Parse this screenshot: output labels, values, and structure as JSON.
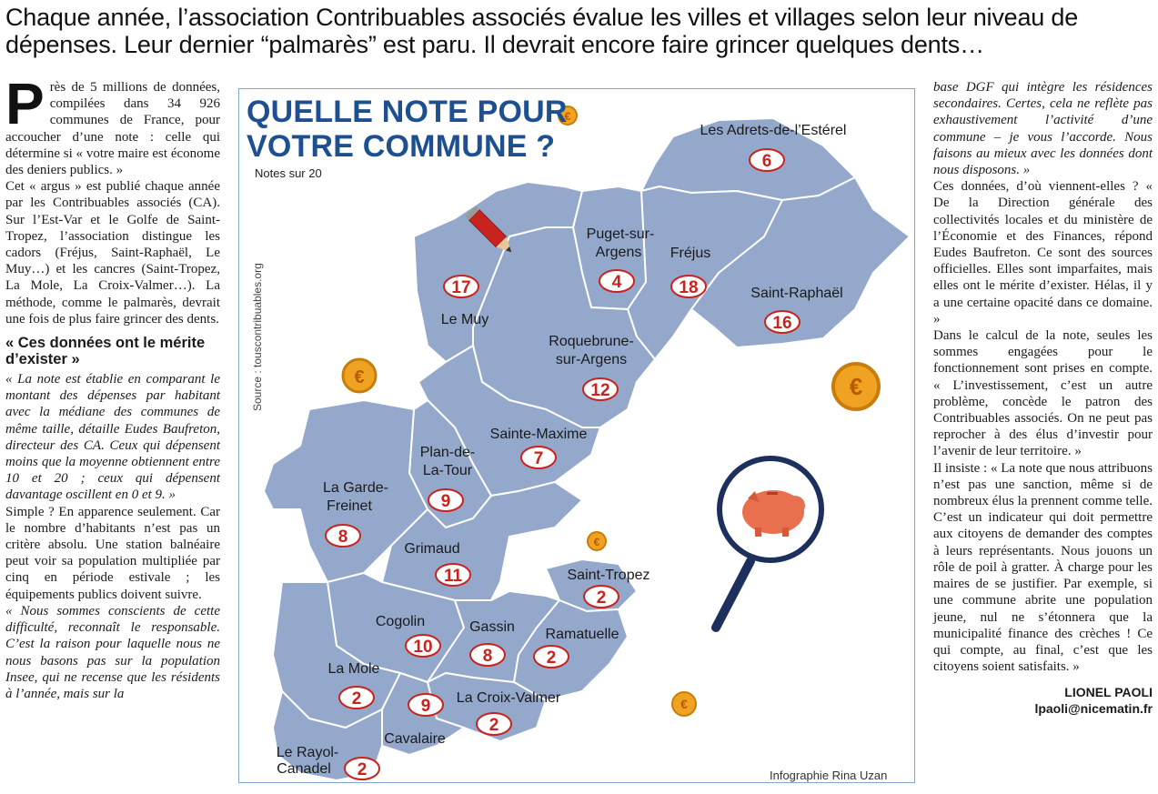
{
  "headline": "Chaque année, l’association Contribuables associés évalue les villes et villages selon leur niveau de dépenses. Leur dernier “palmarès” est paru. Il devrait encore faire grincer quelques dents…",
  "left": {
    "dropcap": "P",
    "intro": "rès de 5 millions de données, compilées dans 34 926 communes de France, pour accoucher d’une note : celle qui détermine si « votre maire est économe des deniers publics. »",
    "p1": "Cet « argus » est publié chaque année par les Contribuables associés (CA). Sur l’Est-Var et le Golfe de Saint-Tropez, l’association distingue les cadors (Fréjus, Saint-Raphaël, Le Muy…) et les cancres (Saint-Tropez, La Mole, La Croix-Valmer…). La méthode, comme le palmarès, devrait une fois de plus faire grincer des dents.",
    "subhead": "« Ces données ont le mérite d’exister »",
    "p2": "« La note est établie en comparant le montant des dépenses par habitant avec la médiane des communes de même taille, détaille Eudes Baufreton, directeur des CA. Ceux qui dépensent moins que la moyenne obtiennent entre 10 et 20 ; ceux qui dépensent davantage oscillent en 0 et 9. »",
    "p3": "Simple ? En apparence seulement. Car le nombre d’habitants n’est pas un critère absolu. Une station balnéaire peut voir sa population multipliée par cinq en période estivale ; les équipements publics doivent suivre.",
    "p4": "« Nous sommes conscients de cette difficulté, reconnaît le responsable. C’est la raison pour laquelle nous ne nous basons pas sur la population Insee, qui ne recense que les résidents à l’année, mais sur la"
  },
  "right": {
    "p1": "base DGF qui intègre les résidences secondaires. Certes, cela ne reflète pas exhaustivement l’activité d’une commune – je vous l’accorde. Nous faisons au mieux avec les données dont nous disposons. »",
    "p2": "Ces données, d’où viennent-elles ? « De la Direction générale des collectivités locales et du ministère de l’Économie et des Finances, répond Eudes Baufreton. Ce sont des sources officielles. Elles sont imparfaites, mais elles ont le mérite d’exister. Hélas, il y a une certaine opacité dans ce domaine. »",
    "p3": "Dans le calcul de la note, seules les sommes engagées pour le fonctionnement sont prises en compte. « L’investissement, c’est un autre problème, concède le patron des Contribuables associés. On ne peut pas reprocher à des élus d’investir pour l’avenir de leur territoire. »",
    "p4": "Il insiste : « La note que nous attribuons n’est pas une sanction, même si de nombreux élus la prennent comme telle. C’est un indicateur qui doit permettre aux citoyens de demander des comptes à leurs représentants. Nous jouons un rôle de poil à gratter. À charge pour les maires de se justifier. Par exemple, si une commune abrite une population jeune, nul ne s’étonnera que la municipalité finance des crèches ! Ce qui compte, au final, c’est que les citoyens soient satisfaits. »",
    "author": "LIONEL PAOLI",
    "email": "lpaoli@nicematin.fr"
  },
  "infographic": {
    "title_line1": "QUELLE NOTE POUR",
    "title_line2": "VOTRE COMMUNE ?",
    "subtitle": "Notes sur 20",
    "source": "Source : touscontribuables.org",
    "credit": "Infographie Rina Uzan",
    "colors": {
      "region_fill": "#93a8cb",
      "region_stroke": "#ffffff",
      "title": "#1d4f91",
      "score": "#c8231e",
      "coin": "#f0a323"
    },
    "communes": [
      {
        "name": "Les Adrets-de-l’Estérel",
        "score": "6"
      },
      {
        "name": "Puget-sur-",
        "name2": "Argens",
        "score": "4"
      },
      {
        "name": "Fréjus",
        "score": "18"
      },
      {
        "name": "Saint-Raphaël",
        "score": "16"
      },
      {
        "name": "Le Muy",
        "score": "17"
      },
      {
        "name": "Roquebrune-",
        "name2": "sur-Argens",
        "score": "12"
      },
      {
        "name": "Sainte-Maxime",
        "score": "7"
      },
      {
        "name": "Plan-de-",
        "name2": "La-Tour",
        "score": "9"
      },
      {
        "name": "La Garde-",
        "name2": "Freinet",
        "score": "8"
      },
      {
        "name": "Grimaud",
        "score": "11"
      },
      {
        "name": "Saint-Tropez",
        "score": "2"
      },
      {
        "name": "Cogolin",
        "score": "10"
      },
      {
        "name": "Gassin",
        "score": "8"
      },
      {
        "name": "Ramatuelle",
        "score": "2"
      },
      {
        "name": "La Mole",
        "score": "2"
      },
      {
        "name": "La Croix-Valmer",
        "score": "2"
      },
      {
        "name": "Cavalaire",
        "score": "9"
      },
      {
        "name": "Le Rayol-",
        "name2": "Canadel",
        "score": "2"
      }
    ]
  }
}
